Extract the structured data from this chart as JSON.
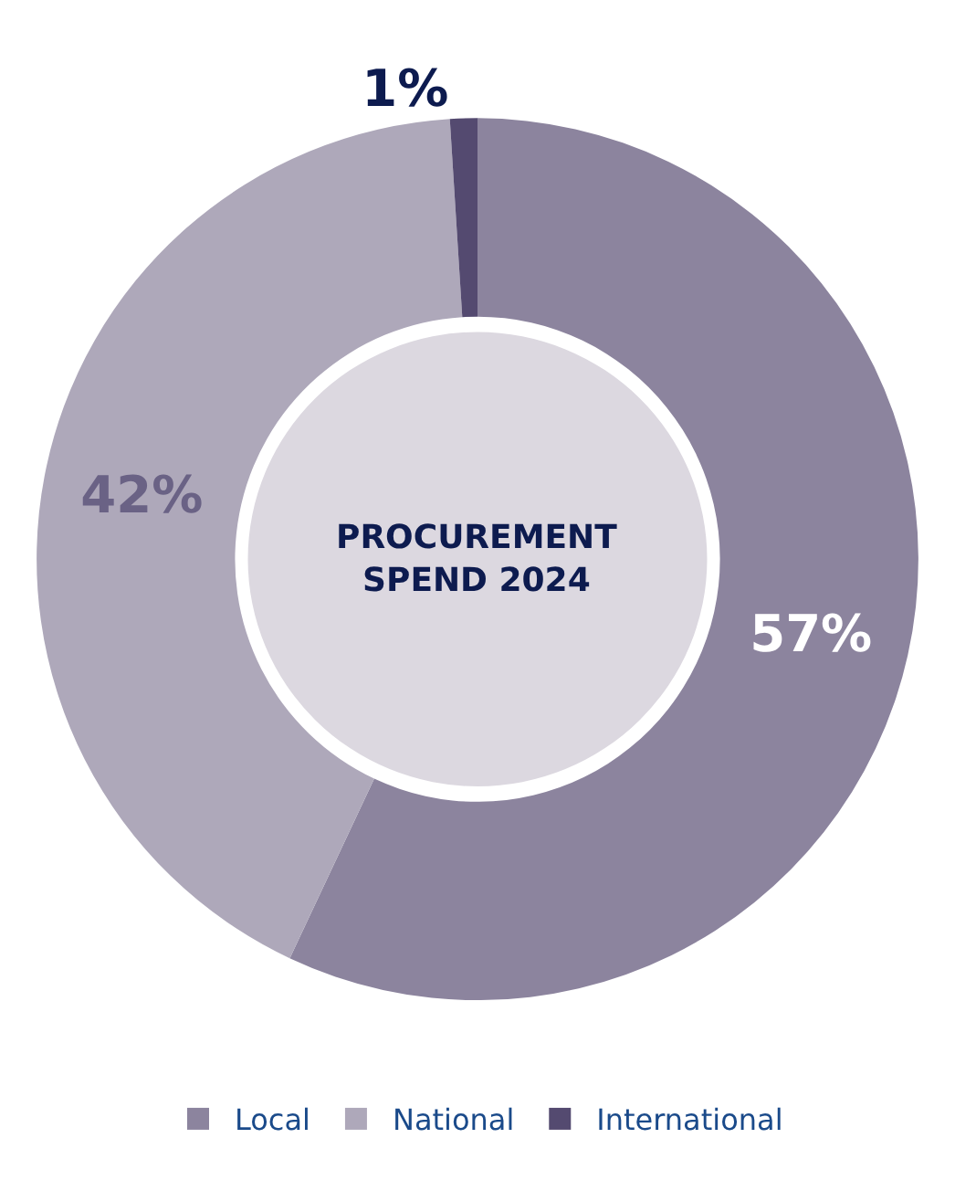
{
  "chart_data": {
    "type": "donut",
    "title": "PROCUREMENT SPEND 2024",
    "categories": [
      "Local",
      "National",
      "International"
    ],
    "values": [
      57,
      42,
      1
    ],
    "colors": [
      "#8c849e",
      "#aea8ba",
      "#544a70"
    ],
    "value_labels": [
      "57%",
      "42%",
      "1%"
    ],
    "legend": "bottom"
  }
}
